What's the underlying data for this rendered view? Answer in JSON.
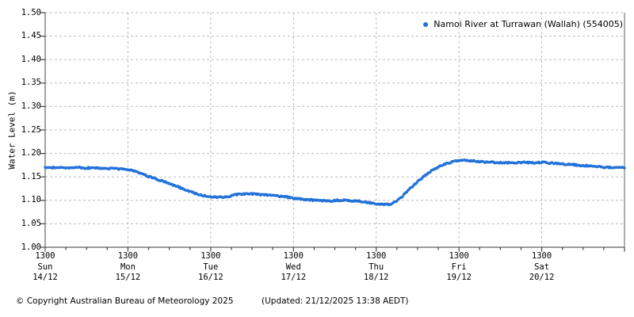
{
  "chart_data": {
    "type": "scatter",
    "title": "",
    "series_name": "Namoi River at Turrawan (Wallah) (554005)",
    "xlabel": "",
    "ylabel": "Water Level (m)",
    "ylim": [
      1.0,
      1.5
    ],
    "ytick_labels": [
      "1.50",
      "1.45",
      "1.40",
      "1.35",
      "1.30",
      "1.25",
      "1.20",
      "1.15",
      "1.10",
      "1.05",
      "1.00"
    ],
    "grid": "dashed",
    "legend_position": "top-right-inside",
    "x_range_hours": 168,
    "x_minor_tick_hours": 6,
    "x_major_ticks": [
      {
        "t": 0,
        "time": "1300",
        "day": "Sun",
        "date": "14/12"
      },
      {
        "t": 24,
        "time": "1300",
        "day": "Mon",
        "date": "15/12"
      },
      {
        "t": 48,
        "time": "1300",
        "day": "Tue",
        "date": "16/12"
      },
      {
        "t": 72,
        "time": "1300",
        "day": "Wed",
        "date": "17/12"
      },
      {
        "t": 96,
        "time": "1300",
        "day": "Thu",
        "date": "18/12"
      },
      {
        "t": 120,
        "time": "1300",
        "day": "Fri",
        "date": "19/12"
      },
      {
        "t": 144,
        "time": "1300",
        "day": "Sat",
        "date": "20/12"
      }
    ],
    "points": [
      [
        0,
        1.169
      ],
      [
        3,
        1.17
      ],
      [
        6,
        1.169
      ],
      [
        9,
        1.17
      ],
      [
        12,
        1.169
      ],
      [
        15,
        1.169
      ],
      [
        18,
        1.168
      ],
      [
        21,
        1.167
      ],
      [
        24,
        1.166
      ],
      [
        26,
        1.162
      ],
      [
        28,
        1.157
      ],
      [
        30,
        1.151
      ],
      [
        32,
        1.146
      ],
      [
        34,
        1.141
      ],
      [
        36,
        1.136
      ],
      [
        38,
        1.13
      ],
      [
        40,
        1.125
      ],
      [
        42,
        1.119
      ],
      [
        44,
        1.114
      ],
      [
        46,
        1.11
      ],
      [
        48,
        1.108
      ],
      [
        50,
        1.107
      ],
      [
        52,
        1.107
      ],
      [
        53,
        1.108
      ],
      [
        55,
        1.112
      ],
      [
        57,
        1.113
      ],
      [
        59,
        1.114
      ],
      [
        61,
        1.113
      ],
      [
        63,
        1.112
      ],
      [
        65,
        1.111
      ],
      [
        67,
        1.11
      ],
      [
        69,
        1.108
      ],
      [
        71,
        1.106
      ],
      [
        73,
        1.104
      ],
      [
        75,
        1.102
      ],
      [
        77,
        1.101
      ],
      [
        79,
        1.1
      ],
      [
        81,
        1.099
      ],
      [
        83,
        1.099
      ],
      [
        85,
        1.1
      ],
      [
        87,
        1.1
      ],
      [
        89,
        1.099
      ],
      [
        91,
        1.098
      ],
      [
        93,
        1.096
      ],
      [
        95,
        1.094
      ],
      [
        96,
        1.093
      ],
      [
        98,
        1.091
      ],
      [
        100,
        1.091
      ],
      [
        101,
        1.094
      ],
      [
        102,
        1.099
      ],
      [
        103,
        1.105
      ],
      [
        104,
        1.112
      ],
      [
        106,
        1.126
      ],
      [
        108,
        1.14
      ],
      [
        110,
        1.152
      ],
      [
        112,
        1.163
      ],
      [
        114,
        1.171
      ],
      [
        116,
        1.178
      ],
      [
        118,
        1.182
      ],
      [
        120,
        1.184
      ],
      [
        122,
        1.185
      ],
      [
        124,
        1.184
      ],
      [
        126,
        1.183
      ],
      [
        128,
        1.182
      ],
      [
        130,
        1.181
      ],
      [
        132,
        1.18
      ],
      [
        135,
        1.18
      ],
      [
        138,
        1.181
      ],
      [
        141,
        1.18
      ],
      [
        144,
        1.181
      ],
      [
        147,
        1.179
      ],
      [
        150,
        1.177
      ],
      [
        153,
        1.176
      ],
      [
        156,
        1.174
      ],
      [
        159,
        1.173
      ],
      [
        162,
        1.171
      ],
      [
        165,
        1.17
      ],
      [
        168,
        1.169
      ]
    ]
  },
  "footer": {
    "copyright": "© Copyright Australian Bureau of Meteorology 2025",
    "updated": "(Updated: 21/12/2025 13:38 AEDT)"
  },
  "colors": {
    "series": "#2272d9",
    "grid": "#bcbcbc",
    "frame": "#7a7a7a",
    "tick": "#444444",
    "text": "#000000",
    "background": "#ffffff"
  }
}
